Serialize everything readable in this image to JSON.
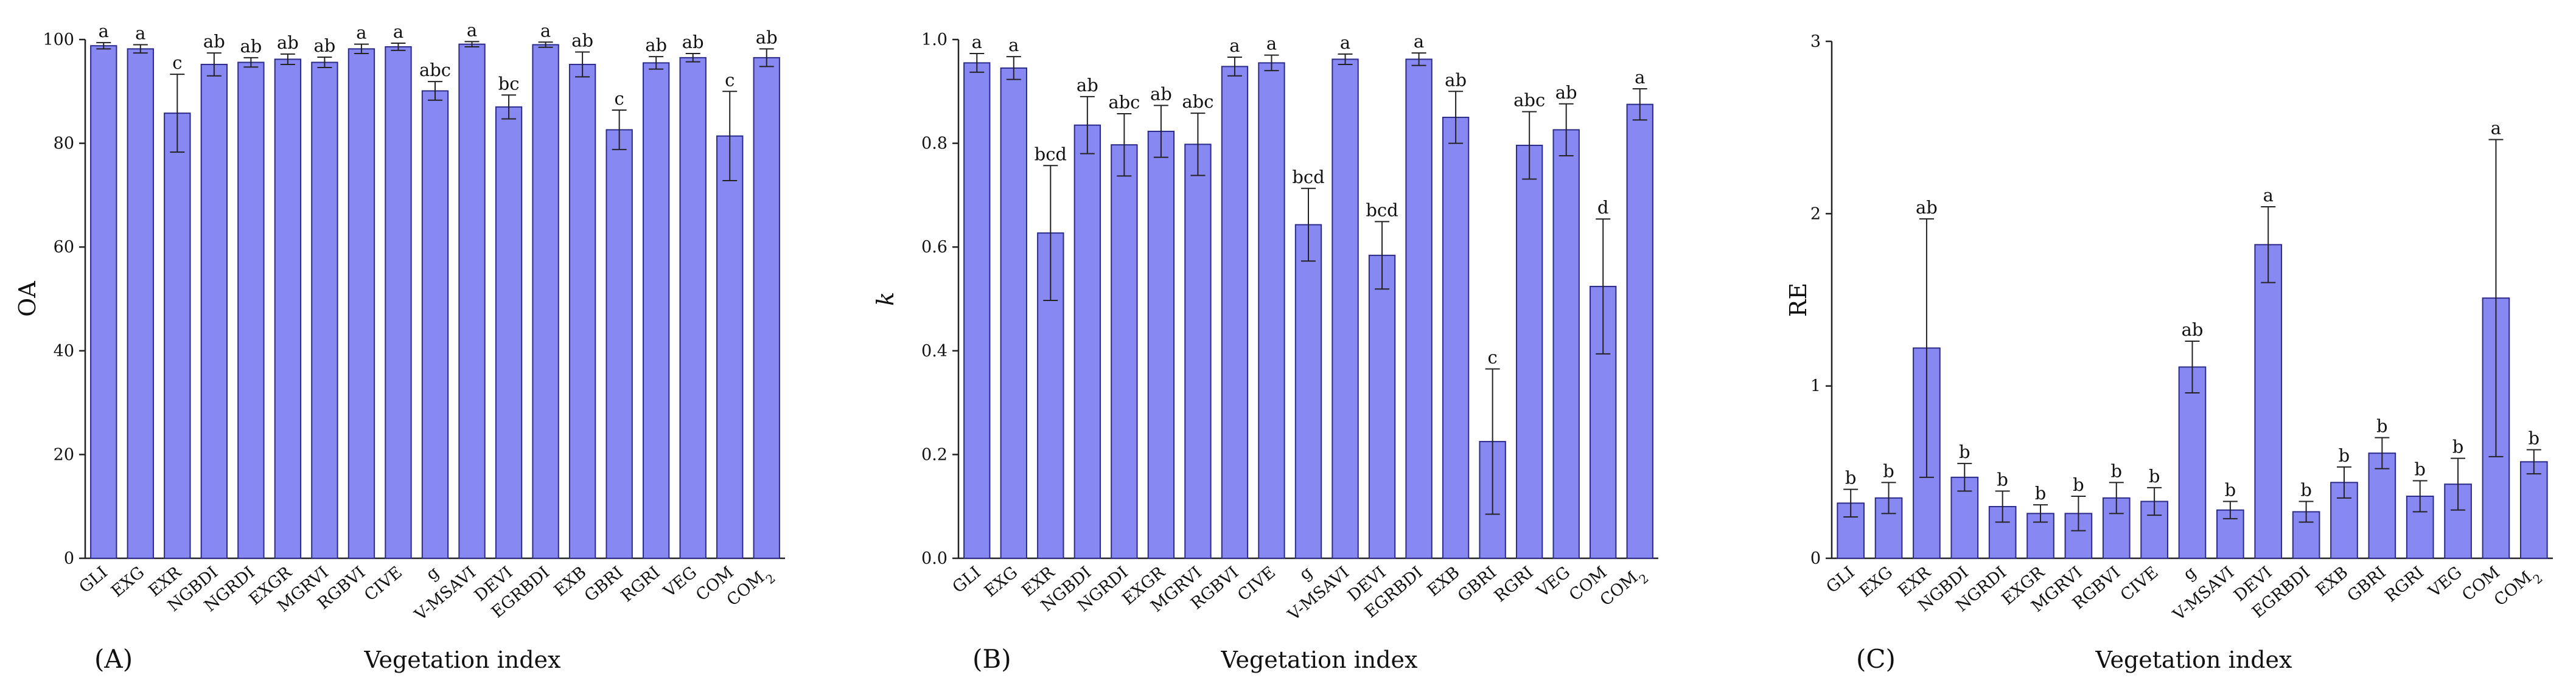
{
  "figure": {
    "panel_labels": [
      "(A)",
      "(B)",
      "(C)"
    ]
  },
  "colors": {
    "bar_fill": "#8888f3",
    "bar_stroke": "#2b2b88",
    "axis": "#222222"
  },
  "chart_data": [
    {
      "type": "bar",
      "panel": "(A)",
      "title": "",
      "xlabel": "Vegetation index",
      "ylabel": "OA",
      "ylim": [
        0,
        100
      ],
      "yticks": [
        "0",
        "20",
        "40",
        "60",
        "80",
        "100"
      ],
      "yticks_values": [
        0,
        20,
        40,
        60,
        80,
        100
      ],
      "categories": [
        "GLI",
        "EXG",
        "EXR",
        "NGBDI",
        "NGRDI",
        "EXGR",
        "MGRVI",
        "RGBVI",
        "CIVE",
        "g",
        "V-MSAVI",
        "DEVI",
        "EGRBDI",
        "EXB",
        "GBRI",
        "RGRI",
        "VEG",
        "COM",
        "COM2"
      ],
      "category_labels": [
        "GLI",
        "EXG",
        "EXR",
        "NGBDI",
        "NGRDI",
        "EXGR",
        "MGRVI",
        "RGBVI",
        "CIVE",
        "g",
        "V-MSAVI",
        "DEVI",
        "EGRBDI",
        "EXB",
        "GBRI",
        "RGRI",
        "VEG",
        "COM",
        "COM",
        "2"
      ],
      "values": [
        98.8,
        98.2,
        85.8,
        95.2,
        95.6,
        96.2,
        95.6,
        98.2,
        98.6,
        90.1,
        99.1,
        87.0,
        99.0,
        95.2,
        82.6,
        95.5,
        96.5,
        81.4,
        96.5
      ],
      "errors": [
        0.6,
        0.8,
        7.5,
        2.2,
        0.9,
        1.0,
        1.0,
        0.9,
        0.7,
        1.8,
        0.5,
        2.3,
        0.5,
        2.4,
        3.8,
        1.2,
        0.8,
        8.6,
        1.7
      ],
      "labels": [
        "a",
        "a",
        "c",
        "ab",
        "ab",
        "ab",
        "ab",
        "a",
        "a",
        "abc",
        "a",
        "bc",
        "a",
        "ab",
        "c",
        "ab",
        "ab",
        "c",
        "ab"
      ]
    },
    {
      "type": "bar",
      "panel": "(B)",
      "title": "",
      "xlabel": "Vegetation index",
      "ylabel": "k",
      "ylim": [
        0,
        1.0
      ],
      "yticks": [
        "0.0",
        "0.2",
        "0.4",
        "0.6",
        "0.8",
        "1.0"
      ],
      "yticks_values": [
        0,
        0.2,
        0.4,
        0.6,
        0.8,
        1.0
      ],
      "categories": [
        "GLI",
        "EXG",
        "EXR",
        "NGBDI",
        "NGRDI",
        "EXGR",
        "MGRVI",
        "RGBVI",
        "CIVE",
        "g",
        "V-MSAVI",
        "DEVI",
        "EGRBDI",
        "EXB",
        "GBRI",
        "RGRI",
        "VEG",
        "COM",
        "COM2"
      ],
      "category_labels": [
        "GLI",
        "EXG",
        "EXR",
        "NGBDI",
        "NGRDI",
        "EXGR",
        "MGRVI",
        "RGBVI",
        "CIVE",
        "g",
        "V-MSAVI",
        "DEVI",
        "EGRBDI",
        "EXB",
        "GBRI",
        "RGRI",
        "VEG",
        "COM",
        "COM",
        "2"
      ],
      "values": [
        0.955,
        0.945,
        0.627,
        0.835,
        0.797,
        0.823,
        0.798,
        0.948,
        0.955,
        0.643,
        0.962,
        0.584,
        0.962,
        0.85,
        0.225,
        0.796,
        0.826,
        0.524,
        0.875
      ],
      "errors": [
        0.018,
        0.022,
        0.13,
        0.055,
        0.06,
        0.05,
        0.06,
        0.018,
        0.015,
        0.07,
        0.01,
        0.065,
        0.012,
        0.05,
        0.14,
        0.065,
        0.05,
        0.13,
        0.03
      ],
      "labels": [
        "a",
        "a",
        "bcd",
        "ab",
        "abc",
        "ab",
        "abc",
        "a",
        "a",
        "bcd",
        "a",
        "bcd",
        "a",
        "ab",
        "c",
        "abc",
        "ab",
        "d",
        "a"
      ]
    },
    {
      "type": "bar",
      "panel": "(C)",
      "title": "",
      "xlabel": "Vegetation index",
      "ylabel": "RE",
      "ylim": [
        0,
        3
      ],
      "yticks": [
        "0",
        "1",
        "2",
        "3"
      ],
      "yticks_values": [
        0,
        1,
        2,
        3
      ],
      "categories": [
        "GLI",
        "EXG",
        "EXR",
        "NGBDI",
        "NGRDI",
        "EXGR",
        "MGRVI",
        "RGBVI",
        "CIVE",
        "g",
        "V-MSAVI",
        "DEVI",
        "EGRBDI",
        "EXB",
        "GBRI",
        "RGRI",
        "VEG",
        "COM",
        "COM2"
      ],
      "category_labels": [
        "GLI",
        "EXG",
        "EXR",
        "NGBDI",
        "NGRDI",
        "EXGR",
        "MGRVI",
        "RGBVI",
        "CIVE",
        "g",
        "V-MSAVI",
        "DEVI",
        "EGRBDI",
        "EXB",
        "GBRI",
        "RGRI",
        "VEG",
        "COM",
        "COM",
        "2"
      ],
      "values": [
        0.32,
        0.35,
        1.22,
        0.47,
        0.3,
        0.26,
        0.26,
        0.35,
        0.33,
        1.11,
        0.28,
        1.82,
        0.27,
        0.44,
        0.61,
        0.36,
        0.43,
        1.51,
        0.56
      ],
      "errors": [
        0.08,
        0.09,
        0.75,
        0.08,
        0.09,
        0.05,
        0.1,
        0.09,
        0.08,
        0.15,
        0.05,
        0.22,
        0.06,
        0.09,
        0.09,
        0.09,
        0.15,
        0.92,
        0.07
      ],
      "labels": [
        "b",
        "b",
        "ab",
        "b",
        "b",
        "b",
        "b",
        "b",
        "b",
        "ab",
        "b",
        "a",
        "b",
        "b",
        "b",
        "b",
        "b",
        "a",
        "b"
      ]
    }
  ]
}
